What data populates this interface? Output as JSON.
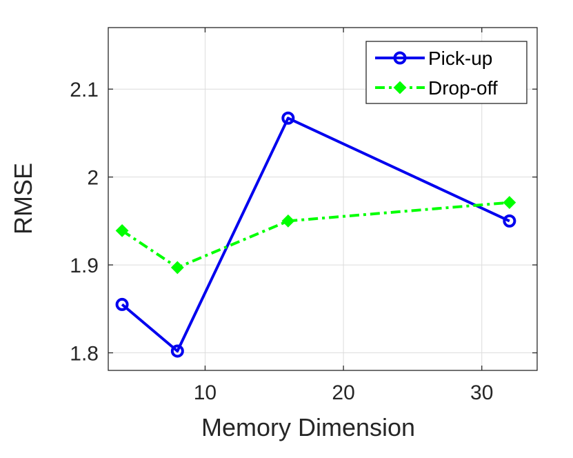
{
  "chart_data": {
    "type": "line",
    "xlabel": "Memory Dimension",
    "ylabel": "RMSE",
    "xlim": [
      3,
      34
    ],
    "ylim": [
      1.78,
      2.17
    ],
    "xticks": [
      10,
      20,
      30
    ],
    "yticks": [
      1.8,
      1.9,
      2,
      2.1
    ],
    "xtick_labels": [
      "10",
      "20",
      "30"
    ],
    "ytick_labels": [
      "1.8",
      "1.9",
      "2",
      "2.1"
    ],
    "grid": true,
    "legend_position": "top-right",
    "series": [
      {
        "name": "Pick-up",
        "color": "#0000ee",
        "marker": "circle",
        "line_style": "solid",
        "x": [
          4,
          8,
          16,
          32
        ],
        "y": [
          1.855,
          1.802,
          2.067,
          1.95
        ]
      },
      {
        "name": "Drop-off",
        "color": "#00ff00",
        "marker": "diamond",
        "line_style": "dash-dot",
        "x": [
          4,
          8,
          16,
          32
        ],
        "y": [
          1.939,
          1.897,
          1.95,
          1.971
        ]
      }
    ]
  }
}
